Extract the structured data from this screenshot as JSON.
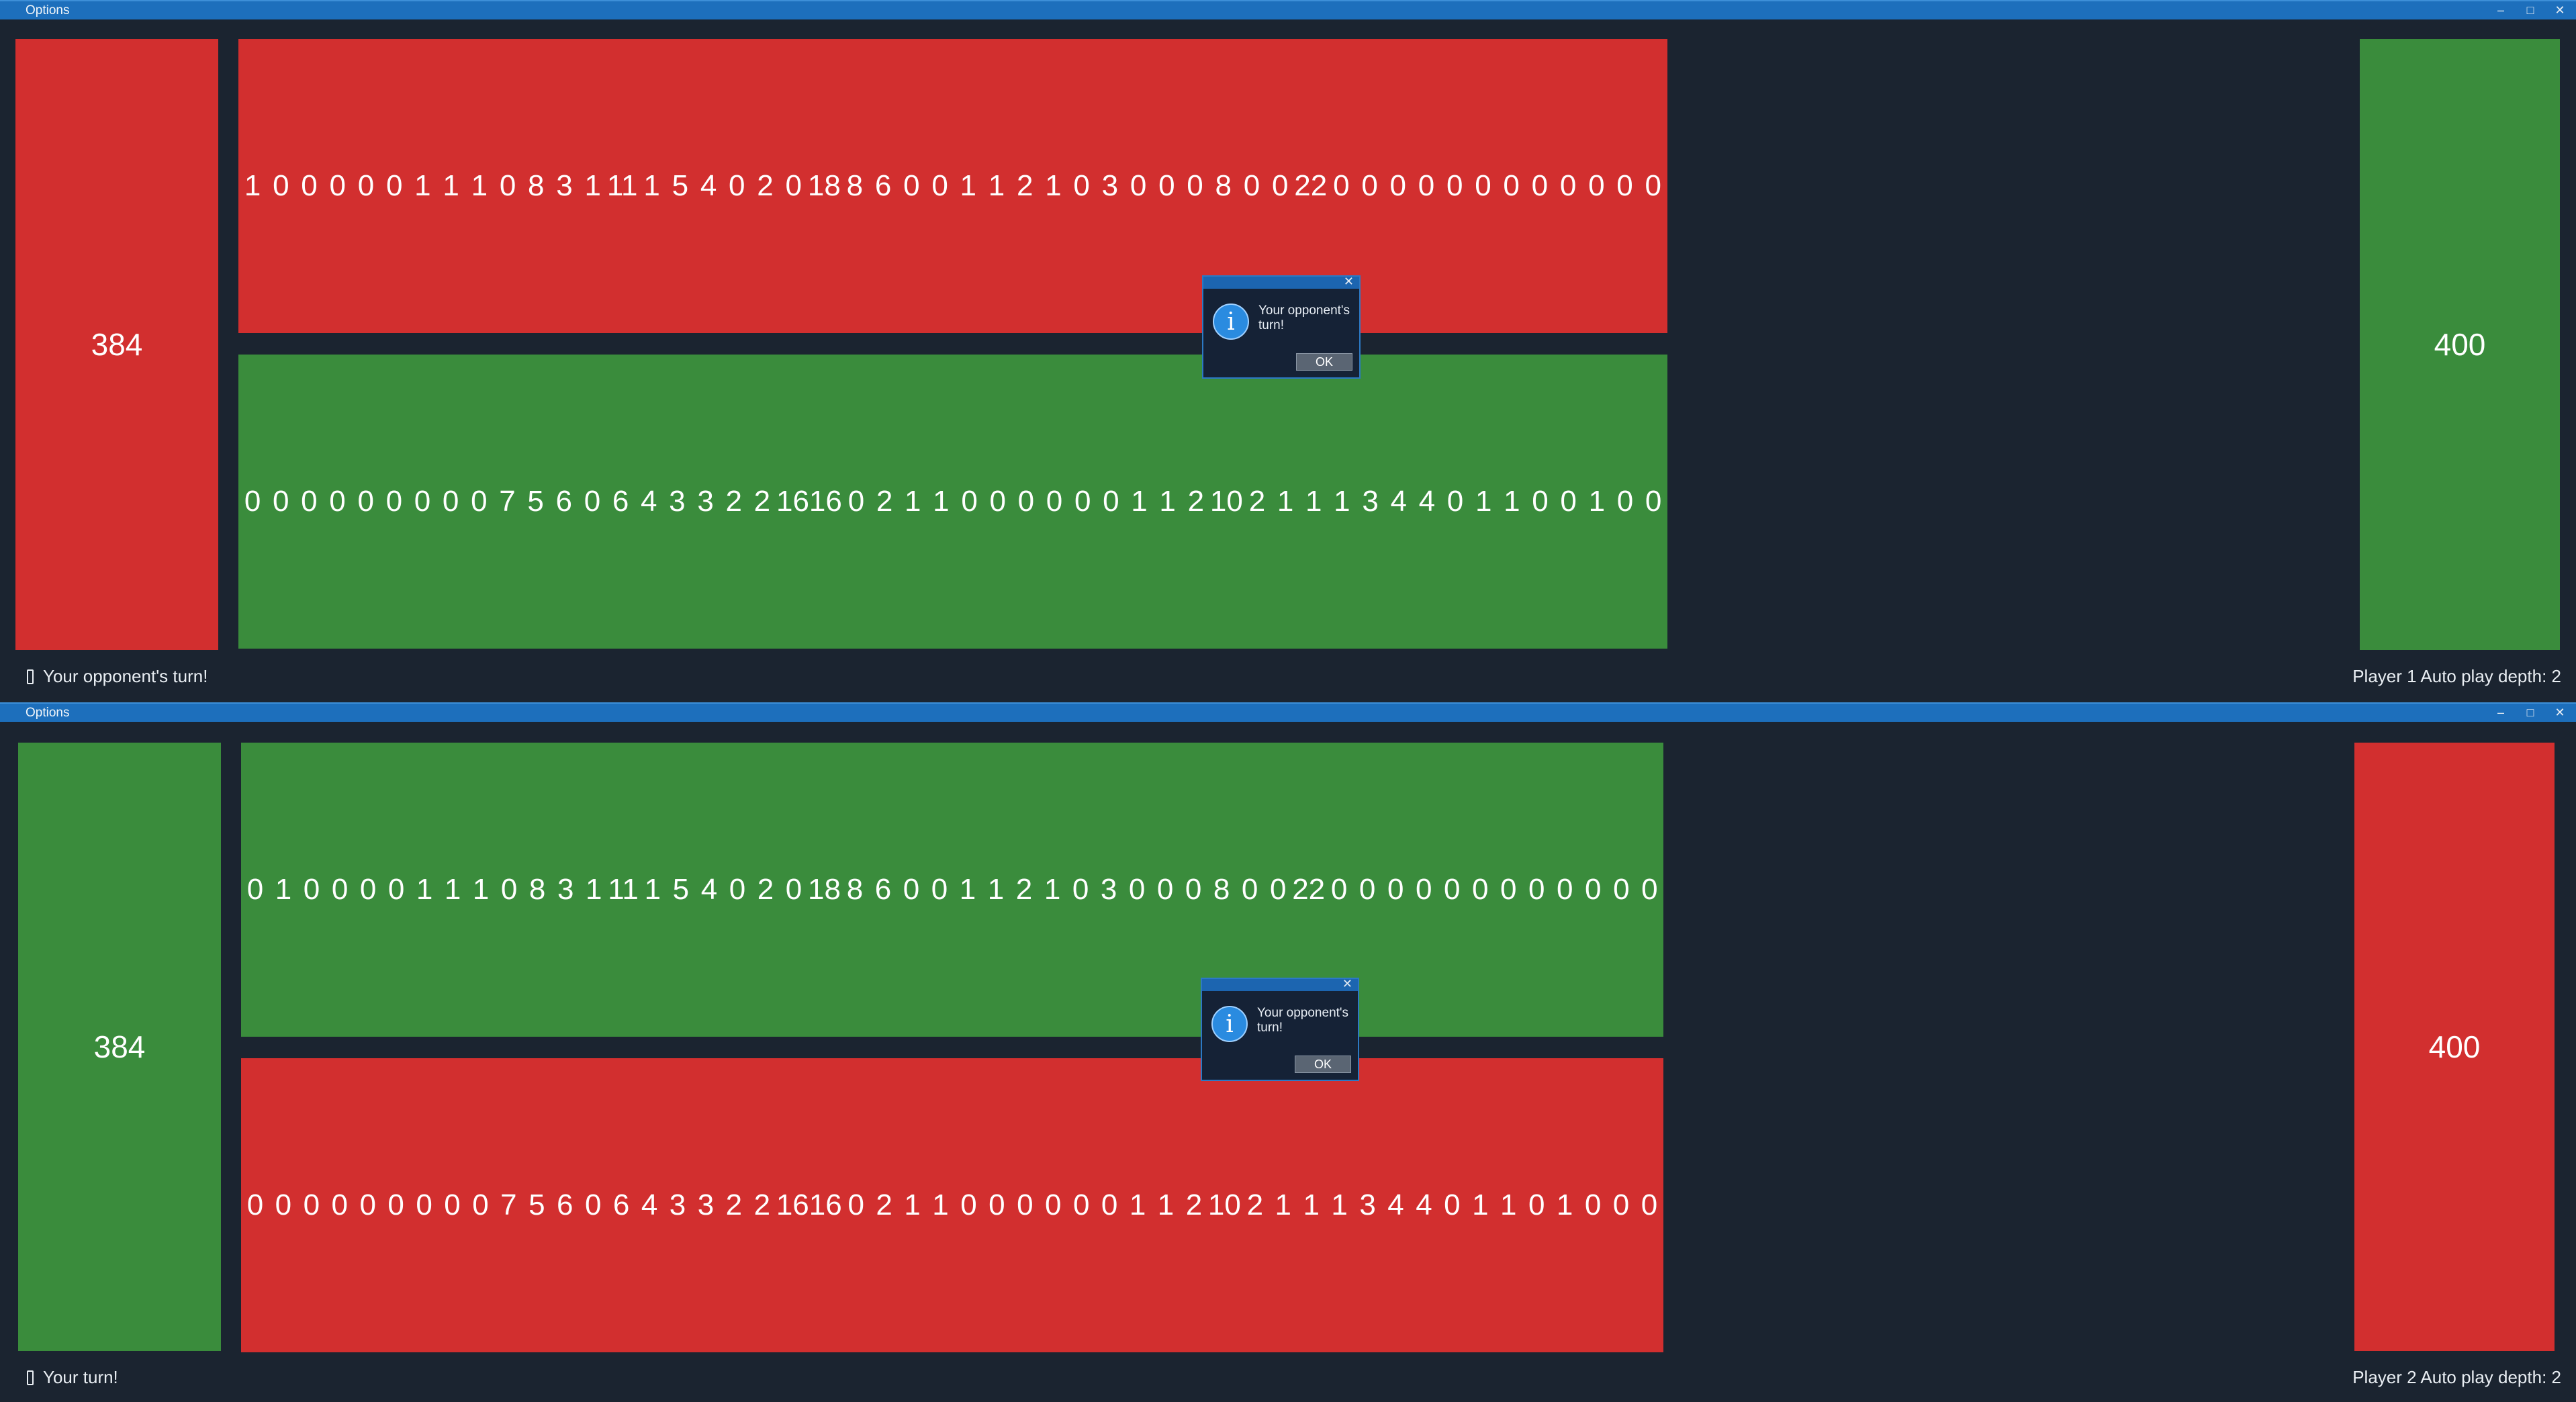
{
  "boards": [
    {
      "title": "Options",
      "left_store": "384",
      "right_store": "400",
      "top_row": [
        "1",
        "0",
        "0",
        "0",
        "0",
        "0",
        "1",
        "1",
        "1",
        "0",
        "8",
        "3",
        "1",
        "11",
        "1",
        "5",
        "4",
        "0",
        "2",
        "0",
        "18",
        "8",
        "6",
        "0",
        "0",
        "1",
        "1",
        "2",
        "1",
        "0",
        "3",
        "0",
        "0",
        "0",
        "8",
        "0",
        "0",
        "22",
        "0",
        "0",
        "0",
        "0",
        "0",
        "0",
        "0",
        "0",
        "0",
        "0",
        "0",
        "0"
      ],
      "bottom_row": [
        "0",
        "0",
        "0",
        "0",
        "0",
        "0",
        "0",
        "0",
        "0",
        "7",
        "5",
        "6",
        "0",
        "6",
        "4",
        "3",
        "3",
        "2",
        "2",
        "16",
        "16",
        "0",
        "2",
        "1",
        "1",
        "0",
        "0",
        "0",
        "0",
        "0",
        "0",
        "1",
        "1",
        "2",
        "10",
        "2",
        "1",
        "1",
        "1",
        "3",
        "4",
        "4",
        "0",
        "1",
        "1",
        "0",
        "0",
        "1",
        "0",
        "0"
      ],
      "status_left": "Your opponent's turn!",
      "status_right": "Player 1  Auto play depth: 2",
      "dialog": {
        "message": "Your opponent's turn!",
        "ok_label": "OK"
      },
      "colors": {
        "top": "#d22f2f",
        "bottom": "#3a8c3c",
        "left_store": "#d22f2f",
        "right_store": "#3a8c3c"
      }
    },
    {
      "title": "Options",
      "left_store": "384",
      "right_store": "400",
      "top_row": [
        "0",
        "1",
        "0",
        "0",
        "0",
        "0",
        "1",
        "1",
        "1",
        "0",
        "8",
        "3",
        "1",
        "11",
        "1",
        "5",
        "4",
        "0",
        "2",
        "0",
        "18",
        "8",
        "6",
        "0",
        "0",
        "1",
        "1",
        "2",
        "1",
        "0",
        "3",
        "0",
        "0",
        "0",
        "8",
        "0",
        "0",
        "22",
        "0",
        "0",
        "0",
        "0",
        "0",
        "0",
        "0",
        "0",
        "0",
        "0",
        "0",
        "0"
      ],
      "bottom_row": [
        "0",
        "0",
        "0",
        "0",
        "0",
        "0",
        "0",
        "0",
        "0",
        "7",
        "5",
        "6",
        "0",
        "6",
        "4",
        "3",
        "3",
        "2",
        "2",
        "16",
        "16",
        "0",
        "2",
        "1",
        "1",
        "0",
        "0",
        "0",
        "0",
        "0",
        "0",
        "1",
        "1",
        "2",
        "10",
        "2",
        "1",
        "1",
        "1",
        "3",
        "4",
        "4",
        "0",
        "1",
        "1",
        "0",
        "1",
        "0",
        "0",
        "0"
      ],
      "status_left": "Your turn!",
      "status_right": "Player 2  Auto play depth: 2",
      "dialog": {
        "message": "Your opponent's turn!",
        "ok_label": "OK"
      },
      "colors": {
        "top": "#3a8c3c",
        "bottom": "#d22f2f",
        "left_store": "#3a8c3c",
        "right_store": "#d22f2f"
      }
    }
  ],
  "icons": {
    "minimize": "minimize-icon",
    "maximize": "maximize-icon",
    "close": "close-icon",
    "info": "info-icon",
    "phone": "phone-icon"
  }
}
